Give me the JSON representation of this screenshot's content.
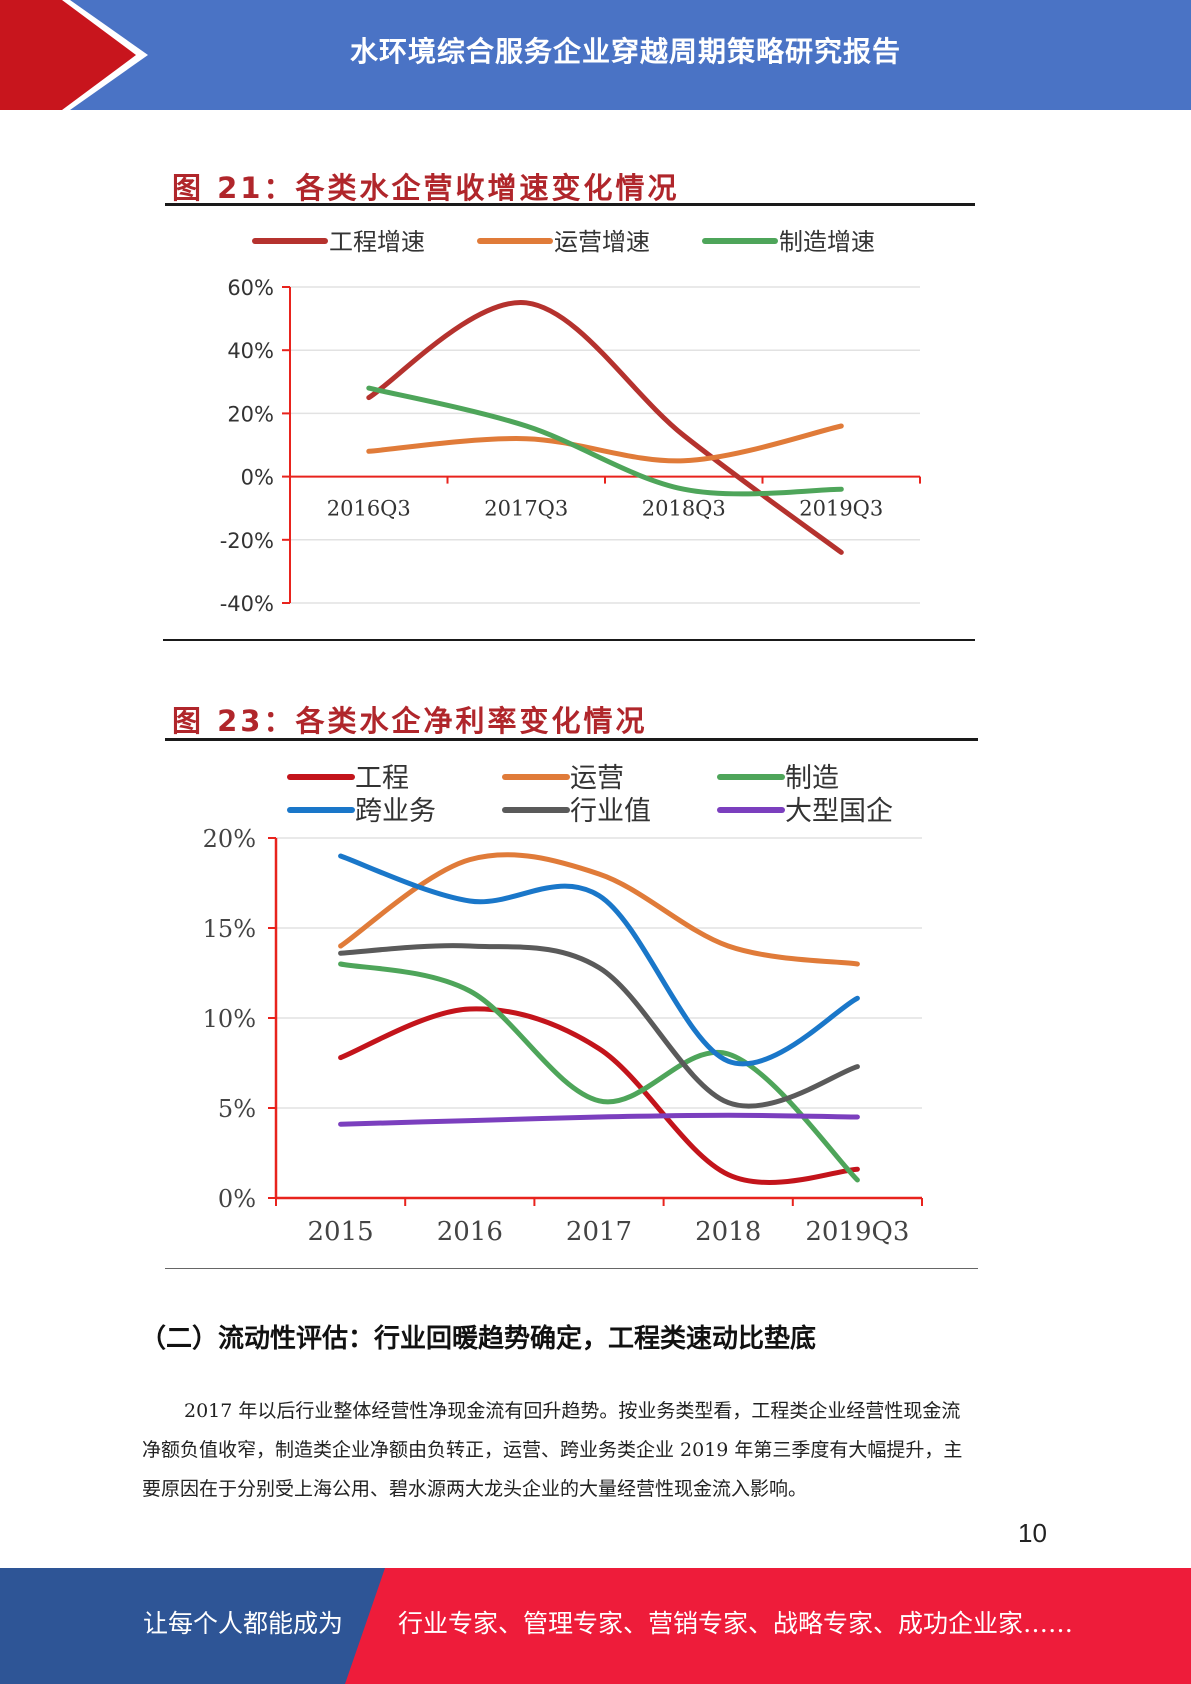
{
  "header": {
    "title": "水环境综合服务企业穿越周期策略研究报告"
  },
  "figure21": {
    "title": "图 21：各类水企营收增速变化情况",
    "chart_data": {
      "type": "line",
      "categories": [
        "2016Q3",
        "2017Q3",
        "2018Q3",
        "2019Q3"
      ],
      "yticks": [
        "60%",
        "40%",
        "20%",
        "0%",
        "-20%",
        "-40%"
      ],
      "ylim": [
        -40,
        60
      ],
      "series": [
        {
          "name": "工程增速",
          "color": "#b5322e",
          "values": [
            25,
            55,
            13,
            -24
          ]
        },
        {
          "name": "运营增速",
          "color": "#e07b39",
          "values": [
            8,
            12,
            5,
            16
          ]
        },
        {
          "name": "制造增速",
          "color": "#4ea55a",
          "values": [
            28,
            16,
            -4,
            -4
          ]
        }
      ]
    }
  },
  "figure23": {
    "title": "图 23：各类水企净利率变化情况",
    "chart_data": {
      "type": "line",
      "categories": [
        "2015",
        "2016",
        "2017",
        "2018",
        "2019Q3"
      ],
      "yticks": [
        "20%",
        "15%",
        "10%",
        "5%",
        "0%"
      ],
      "ylim": [
        0,
        20
      ],
      "series": [
        {
          "name": "工程",
          "color": "#c3141b",
          "values": [
            7.8,
            10.5,
            8.3,
            1.3,
            1.6
          ]
        },
        {
          "name": "运营",
          "color": "#e07b39",
          "values": [
            14,
            18.8,
            18,
            14,
            13
          ]
        },
        {
          "name": "制造",
          "color": "#4ea55a",
          "values": [
            13,
            11.5,
            5.4,
            8.0,
            1.0
          ]
        },
        {
          "name": "跨业务",
          "color": "#1a77c9",
          "values": [
            19,
            16.5,
            16.8,
            7.6,
            11.1
          ]
        },
        {
          "name": "行业值",
          "color": "#5a5a5a",
          "values": [
            13.6,
            14,
            12.8,
            5.3,
            7.3
          ]
        },
        {
          "name": "大型国企",
          "color": "#7b3fbe",
          "values": [
            4.1,
            4.3,
            4.5,
            4.6,
            4.5
          ]
        }
      ]
    }
  },
  "section": {
    "heading": "（二）流动性评估：行业回暖趋势确定，工程类速动比垫底",
    "lines": [
      "2017 年以后行业整体经营性净现金流有回升趋势。按业务类型看，工程类企业经营性现金流",
      "净额负值收窄，制造类企业净额由负转正，运营、跨业务类企业 2019 年第三季度有大幅提升，主",
      "要原因在于分别受上海公用、碧水源两大龙头企业的大量经营性现金流入影响。"
    ]
  },
  "page_number": "10",
  "footer": {
    "left": "让每个人都能成为",
    "right": "行业专家、管理专家、营销专家、战略专家、成功企业家……"
  }
}
